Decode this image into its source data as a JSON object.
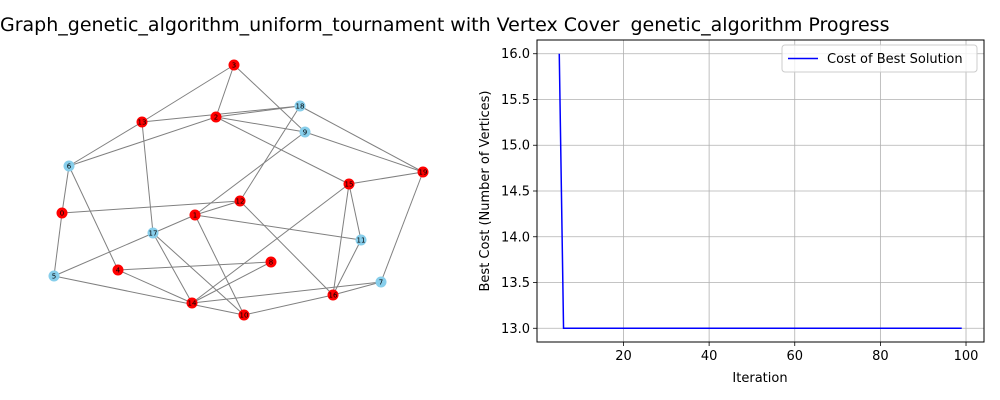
{
  "chart_data": [
    {
      "type": "graph",
      "title": "Graph_genetic_algorithm_uniform_tournament with Vertex Cover",
      "colors": {
        "cover": "#ff0000",
        "non_cover": "#87ceeb",
        "edge": "#808080"
      },
      "nodes": [
        {
          "id": "0",
          "in_cover": true
        },
        {
          "id": "1",
          "in_cover": true
        },
        {
          "id": "2",
          "in_cover": true
        },
        {
          "id": "3",
          "in_cover": true
        },
        {
          "id": "4",
          "in_cover": true
        },
        {
          "id": "5",
          "in_cover": false
        },
        {
          "id": "6",
          "in_cover": false
        },
        {
          "id": "7",
          "in_cover": false
        },
        {
          "id": "8",
          "in_cover": true
        },
        {
          "id": "9",
          "in_cover": false
        },
        {
          "id": "10",
          "in_cover": true
        },
        {
          "id": "11",
          "in_cover": false
        },
        {
          "id": "12",
          "in_cover": true
        },
        {
          "id": "13",
          "in_cover": true
        },
        {
          "id": "14",
          "in_cover": true
        },
        {
          "id": "15",
          "in_cover": true
        },
        {
          "id": "16",
          "in_cover": true
        },
        {
          "id": "17",
          "in_cover": false
        },
        {
          "id": "18",
          "in_cover": false
        },
        {
          "id": "19",
          "in_cover": true
        }
      ],
      "edges": [
        [
          "3",
          "2"
        ],
        [
          "3",
          "13"
        ],
        [
          "3",
          "9"
        ],
        [
          "13",
          "18"
        ],
        [
          "2",
          "18"
        ],
        [
          "2",
          "9"
        ],
        [
          "2",
          "6"
        ],
        [
          "2",
          "15"
        ],
        [
          "13",
          "17"
        ],
        [
          "6",
          "13"
        ],
        [
          "6",
          "4"
        ],
        [
          "0",
          "6"
        ],
        [
          "0",
          "5"
        ],
        [
          "0",
          "12"
        ],
        [
          "1",
          "12"
        ],
        [
          "1",
          "9"
        ],
        [
          "1",
          "11"
        ],
        [
          "1",
          "5"
        ],
        [
          "1",
          "10"
        ],
        [
          "18",
          "12"
        ],
        [
          "18",
          "19"
        ],
        [
          "9",
          "19"
        ],
        [
          "15",
          "19"
        ],
        [
          "15",
          "11"
        ],
        [
          "15",
          "16"
        ],
        [
          "14",
          "15"
        ],
        [
          "17",
          "14"
        ],
        [
          "17",
          "10"
        ],
        [
          "4",
          "8"
        ],
        [
          "4",
          "14"
        ],
        [
          "5",
          "10"
        ],
        [
          "8",
          "14"
        ],
        [
          "12",
          "16"
        ],
        [
          "11",
          "16"
        ],
        [
          "19",
          "7"
        ],
        [
          "7",
          "16"
        ],
        [
          "7",
          "14"
        ],
        [
          "10",
          "16"
        ]
      ]
    },
    {
      "type": "line",
      "title": "genetic_algorithm Progress",
      "xlabel": "Iteration",
      "ylabel": "Best Cost (Number of Vertices)",
      "xlim": [
        -0.2,
        104.2
      ],
      "ylim": [
        12.85,
        16.15
      ],
      "xticks": [
        20,
        40,
        60,
        80,
        100
      ],
      "yticks": [
        13.0,
        13.5,
        14.0,
        14.5,
        15.0,
        15.5,
        16.0
      ],
      "xtick_labels": [
        "20",
        "40",
        "60",
        "80",
        "100"
      ],
      "ytick_labels": [
        "13.0",
        "13.5",
        "14.0",
        "14.5",
        "15.0",
        "15.5",
        "16.0"
      ],
      "grid": true,
      "legend_position": "upper right",
      "series": [
        {
          "name": "Cost of Best Solution",
          "color": "#0000ff",
          "points": [
            [
              5,
              16
            ],
            [
              6,
              13
            ],
            [
              99,
              13
            ]
          ]
        }
      ]
    }
  ]
}
